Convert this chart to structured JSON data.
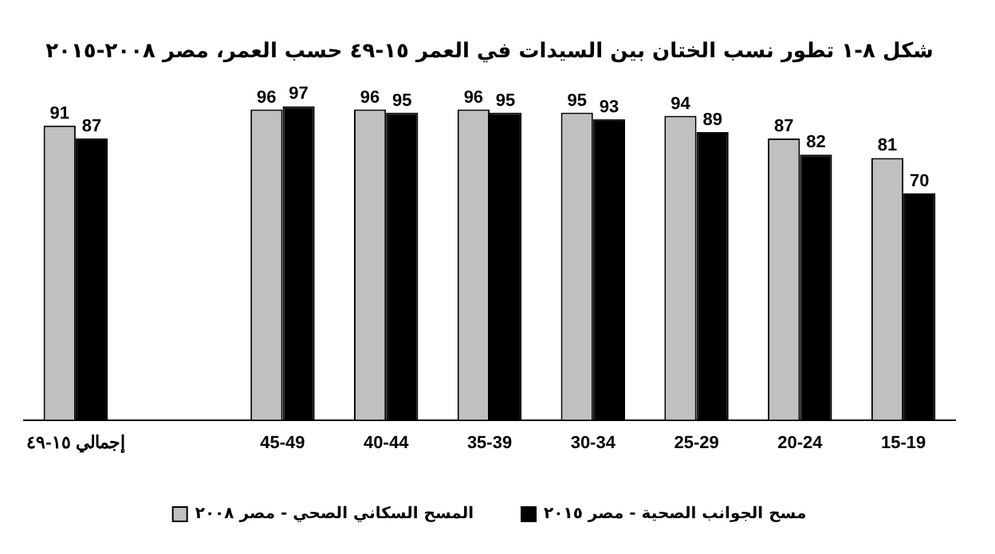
{
  "chart_data": {
    "type": "bar",
    "title": "شكل ٨-١ تطور نسب الختان بين السيدات في العمر ١٥-٤٩ حسب العمر، مصر ٢٠٠٨-٢٠١٥",
    "categories": [
      "إجمالي ١٥-٤٩",
      null,
      "45-49",
      "40-44",
      "35-39",
      "30-34",
      "25-29",
      "20-24",
      "15-19"
    ],
    "series": [
      {
        "name": "المسح السكاني الصحي - مصر ٢٠٠٨",
        "color": "#c0c0c0",
        "values": [
          91,
          null,
          96,
          96,
          96,
          95,
          94,
          87,
          81
        ]
      },
      {
        "name": "مسح الجوانب الصحية - مصر ٢٠١٥",
        "color": "#000000",
        "values": [
          87,
          null,
          97,
          95,
          95,
          93,
          89,
          82,
          70
        ]
      }
    ],
    "tick_labels": "x",
    "data_labels": true,
    "legend": "bottom",
    "grid": false
  }
}
